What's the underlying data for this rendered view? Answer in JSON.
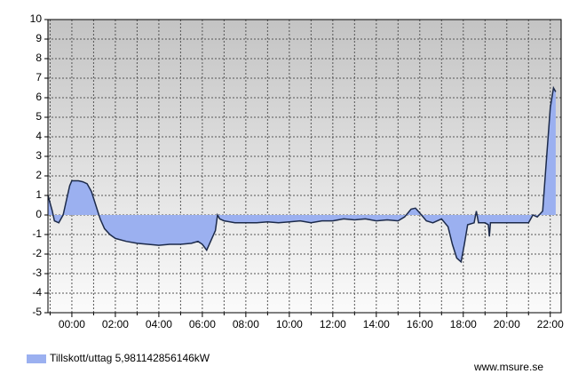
{
  "chart_data": {
    "type": "area",
    "x": [
      -1.1,
      -0.9,
      -0.8,
      -0.6,
      -0.4,
      -0.2,
      -0.1,
      0,
      0.3,
      0.5,
      0.7,
      0.9,
      1.1,
      1.3,
      1.5,
      1.75,
      2,
      2.5,
      3,
      3.5,
      4,
      4.5,
      5,
      5.5,
      5.8,
      6,
      6.2,
      6.4,
      6.6,
      6.7,
      6.8,
      7,
      7.5,
      8,
      8.5,
      9,
      9.5,
      10,
      10.5,
      11,
      11.5,
      12,
      12.5,
      13,
      13.5,
      14,
      14.5,
      15,
      15.3,
      15.6,
      15.8,
      16,
      16.3,
      16.6,
      17,
      17.3,
      17.5,
      17.7,
      17.9,
      18.05,
      18.2,
      18.5,
      18.6,
      18.7,
      19,
      19.15,
      19.2,
      19.25,
      19.5,
      20,
      20.5,
      21,
      21.2,
      21.4,
      21.65,
      21.8,
      22,
      22.15,
      22.25
    ],
    "series": [
      {
        "name": "Tillskott/uttag 5,981142856146kW",
        "color": "#9bb0f0",
        "line_color": "#1c2a4a",
        "values": [
          1.0,
          0.2,
          -0.3,
          -0.4,
          0.0,
          1.0,
          1.5,
          1.75,
          1.75,
          1.7,
          1.6,
          1.2,
          0.5,
          -0.2,
          -0.7,
          -1.0,
          -1.2,
          -1.35,
          -1.45,
          -1.5,
          -1.55,
          -1.5,
          -1.5,
          -1.45,
          -1.35,
          -1.5,
          -1.8,
          -1.3,
          -0.8,
          0.0,
          -0.2,
          -0.3,
          -0.4,
          -0.4,
          -0.4,
          -0.35,
          -0.4,
          -0.35,
          -0.3,
          -0.4,
          -0.3,
          -0.3,
          -0.2,
          -0.25,
          -0.2,
          -0.3,
          -0.25,
          -0.3,
          -0.1,
          0.3,
          0.35,
          0.1,
          -0.3,
          -0.4,
          -0.2,
          -0.6,
          -1.5,
          -2.2,
          -2.4,
          -1.5,
          -0.5,
          -0.4,
          0.2,
          -0.4,
          -0.4,
          -0.5,
          -1.1,
          -0.4,
          -0.4,
          -0.4,
          -0.4,
          -0.4,
          0.0,
          -0.1,
          0.2,
          2.5,
          5.5,
          6.5,
          6.3
        ]
      }
    ],
    "xlim": [
      -1.1,
      22.5
    ],
    "xticks": [
      {
        "value": 0,
        "label": "00:00"
      },
      {
        "value": 2,
        "label": "02:00"
      },
      {
        "value": 4,
        "label": "04:00"
      },
      {
        "value": 6,
        "label": "06:00"
      },
      {
        "value": 8,
        "label": "08:00"
      },
      {
        "value": 10,
        "label": "10:00"
      },
      {
        "value": 12,
        "label": "12:00"
      },
      {
        "value": 14,
        "label": "14:00"
      },
      {
        "value": 16,
        "label": "16:00"
      },
      {
        "value": 18,
        "label": "18:00"
      },
      {
        "value": 20,
        "label": "20:00"
      },
      {
        "value": 22,
        "label": "22:00"
      }
    ],
    "x_minor_ticks": [
      -1,
      1,
      3,
      5,
      7,
      9,
      11,
      13,
      15,
      17,
      19,
      21
    ],
    "ylim": [
      -5,
      10
    ],
    "yticks": [
      -5,
      -4,
      -3,
      -2,
      -1,
      0,
      1,
      2,
      3,
      4,
      5,
      6,
      7,
      8,
      9,
      10
    ],
    "grid": true,
    "legend": "bottom-left",
    "footer": "www.msure.se"
  }
}
